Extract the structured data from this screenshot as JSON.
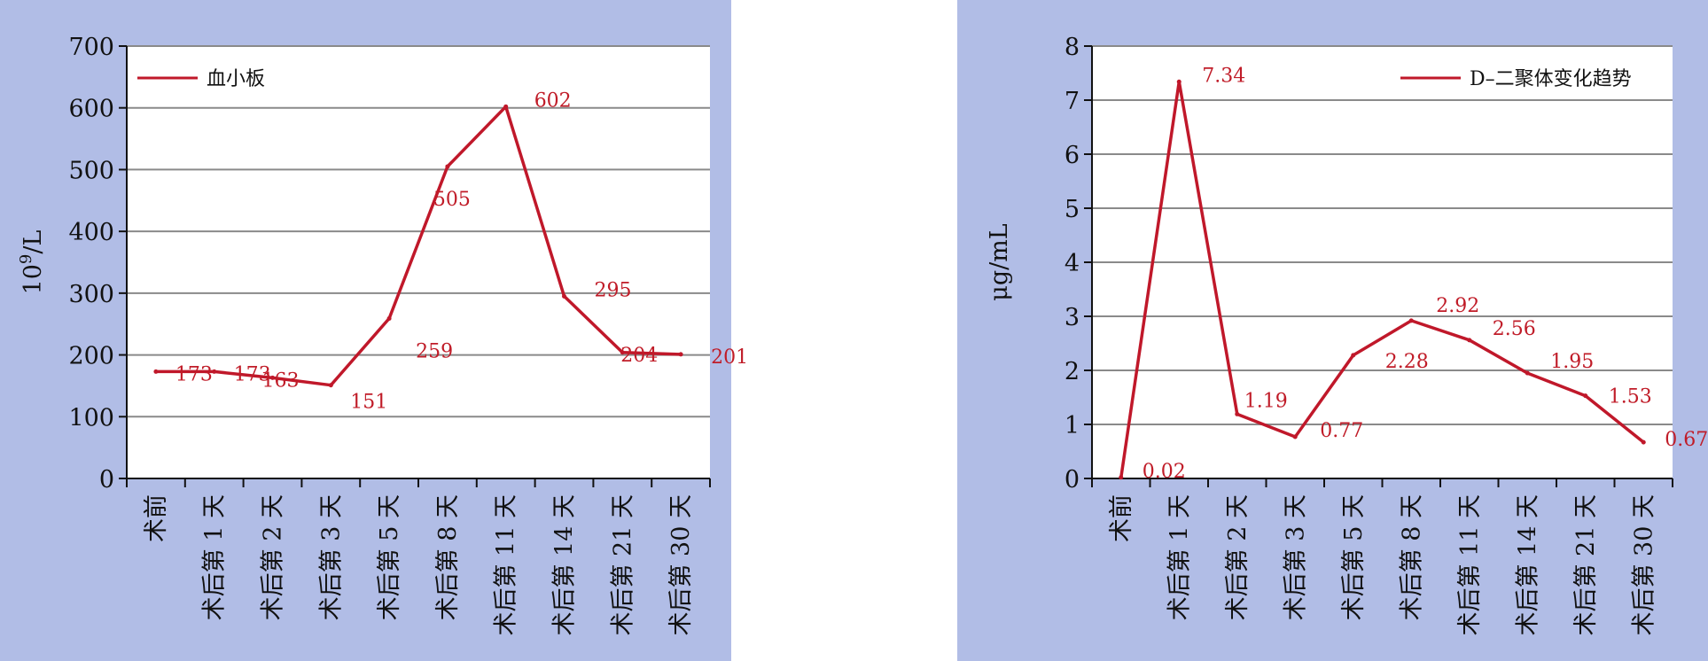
{
  "colors": {
    "panel_bg": "#b1bde6",
    "plot_bg": "#ffffff",
    "series": "#c0182a",
    "grid": "#8a8a8a"
  },
  "chart_data": [
    {
      "type": "line",
      "title": "",
      "xlabel": "",
      "ylabel_base": "10",
      "ylabel_exp": "9",
      "ylabel_tail": "/L",
      "ylim": [
        0,
        700
      ],
      "yticks": [
        0,
        100,
        200,
        300,
        400,
        500,
        600,
        700
      ],
      "grid": true,
      "legend_placement": "top-left",
      "categories": [
        "术前",
        "术后第 1 天",
        "术后第 2 天",
        "术后第 3 天",
        "术后第 5 天",
        "术后第 8 天",
        "术后第 11 天",
        "术后第 14 天",
        "术后第 21 天",
        "术后第 30 天"
      ],
      "series": [
        {
          "name": "血小板",
          "values": [
            173,
            173,
            163,
            151,
            259,
            505,
            602,
            295,
            204,
            201
          ]
        }
      ]
    },
    {
      "type": "line",
      "title": "",
      "xlabel": "",
      "ylabel": "μg/mL",
      "ylim": [
        0,
        8
      ],
      "yticks": [
        0,
        1,
        2,
        3,
        4,
        5,
        6,
        7,
        8
      ],
      "grid": true,
      "legend_placement": "top-right",
      "categories": [
        "术前",
        "术后第 1 天",
        "术后第 2 天",
        "术后第 3 天",
        "术后第 5 天",
        "术后第 8 天",
        "术后第 11 天",
        "术后第 14 天",
        "术后第 21 天",
        "术后第 30 天"
      ],
      "series": [
        {
          "name": "D–二聚体变化趋势",
          "values": [
            0.02,
            7.34,
            1.19,
            0.77,
            2.28,
            2.92,
            2.56,
            1.95,
            1.53,
            0.67
          ]
        }
      ]
    }
  ]
}
